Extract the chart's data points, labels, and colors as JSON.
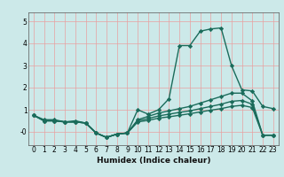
{
  "title": "",
  "xlabel": "Humidex (Indice chaleur)",
  "ylabel": "",
  "bg_color": "#cce9e9",
  "grid_color": "#e8a0a0",
  "line_color": "#1a6b5a",
  "x_values": [
    0,
    1,
    2,
    3,
    4,
    5,
    6,
    7,
    8,
    9,
    10,
    11,
    12,
    13,
    14,
    15,
    16,
    17,
    18,
    19,
    20,
    21,
    22,
    23
  ],
  "line1_y": [
    0.75,
    0.55,
    0.55,
    0.45,
    0.5,
    0.4,
    -0.05,
    -0.25,
    -0.1,
    -0.05,
    1.0,
    0.8,
    1.0,
    1.5,
    3.9,
    3.9,
    4.55,
    4.65,
    4.7,
    3.0,
    1.9,
    1.85,
    1.15,
    1.05
  ],
  "line2_y": [
    0.75,
    0.5,
    0.5,
    0.45,
    0.45,
    0.4,
    -0.05,
    -0.25,
    -0.1,
    -0.05,
    0.55,
    0.7,
    0.85,
    0.95,
    1.05,
    1.15,
    1.3,
    1.45,
    1.6,
    1.75,
    1.75,
    1.4,
    -0.15,
    -0.15
  ],
  "line3_y": [
    0.75,
    0.5,
    0.5,
    0.45,
    0.45,
    0.4,
    -0.05,
    -0.25,
    -0.1,
    -0.05,
    0.5,
    0.6,
    0.72,
    0.8,
    0.88,
    0.95,
    1.05,
    1.15,
    1.25,
    1.38,
    1.42,
    1.25,
    -0.15,
    -0.15
  ],
  "line4_y": [
    0.75,
    0.5,
    0.5,
    0.45,
    0.45,
    0.4,
    -0.05,
    -0.25,
    -0.1,
    -0.05,
    0.45,
    0.52,
    0.62,
    0.68,
    0.75,
    0.82,
    0.9,
    0.98,
    1.05,
    1.15,
    1.2,
    1.1,
    -0.15,
    -0.15
  ],
  "ylim": [
    -0.6,
    5.4
  ],
  "xlim": [
    -0.5,
    23.5
  ],
  "yticks": [
    0,
    1,
    2,
    3,
    4,
    5
  ],
  "ytick_labels": [
    "-0",
    "1",
    "2",
    "3",
    "4",
    "5"
  ],
  "xticks": [
    0,
    1,
    2,
    3,
    4,
    5,
    6,
    7,
    8,
    9,
    10,
    11,
    12,
    13,
    14,
    15,
    16,
    17,
    18,
    19,
    20,
    21,
    22,
    23
  ],
  "marker": "D",
  "markersize": 2.2,
  "linewidth": 1.0,
  "xlabel_fontsize": 6.5,
  "tick_fontsize": 5.5
}
